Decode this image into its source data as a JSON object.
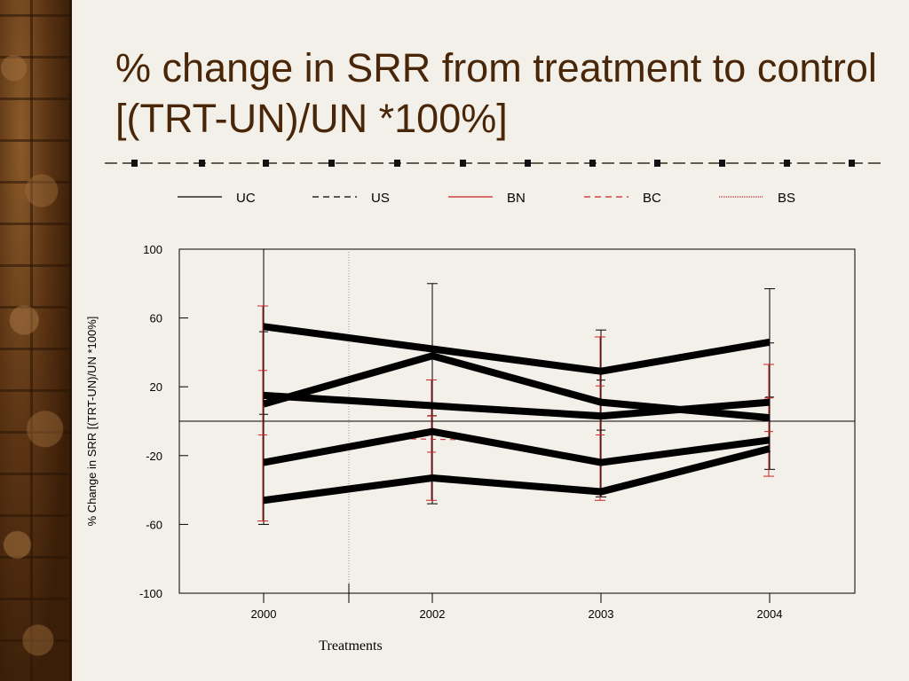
{
  "slide": {
    "title": "% change in SRR from treatment to control  [(TRT-UN)/UN *100%]"
  },
  "colors": {
    "title": "#4a2608",
    "background": "#f3f0ea",
    "series_black": "#000000",
    "series_red": "#cc2222"
  },
  "chart_data": {
    "type": "line",
    "ylabel": "% Change in SRR  [(TRT-UN)/UN *100%]",
    "xlabel": "Treatments",
    "categories": [
      "2000",
      "2002",
      "2003",
      "2004"
    ],
    "yticks": [
      "100",
      "60",
      "20",
      "-20",
      "-60",
      "-100"
    ],
    "ylim": [
      -100,
      100
    ],
    "reference_line": 0,
    "legend_position": "top",
    "legend": [
      {
        "name": "UC",
        "style": "solid",
        "color": "#000000"
      },
      {
        "name": "US",
        "style": "dashed",
        "color": "#000000"
      },
      {
        "name": "BN",
        "style": "solid",
        "color": "#cc2222"
      },
      {
        "name": "BC",
        "style": "dashed",
        "color": "#cc2222"
      },
      {
        "name": "BS",
        "style": "dotted",
        "color": "#cc2222"
      }
    ],
    "series": [
      {
        "values": [
          55,
          42,
          29,
          46
        ]
      },
      {
        "values": [
          10,
          38,
          11,
          2
        ]
      },
      {
        "values": [
          15,
          9,
          3,
          11
        ]
      },
      {
        "values": [
          -24,
          -6,
          -24,
          -11
        ]
      },
      {
        "values": [
          -46,
          -33,
          -41,
          -16
        ]
      }
    ],
    "error_bars": [
      {
        "x": "2000",
        "low": -60,
        "high": 100,
        "color": "#000000"
      },
      {
        "x": "2000",
        "low": -58,
        "high": 67,
        "color": "#cc2222"
      },
      {
        "x": "2002",
        "low": -48,
        "high": 80,
        "color": "#000000"
      },
      {
        "x": "2002",
        "low": -46,
        "high": 24,
        "color": "#cc2222"
      },
      {
        "x": "2003",
        "low": -44,
        "high": 53,
        "color": "#000000"
      },
      {
        "x": "2003",
        "low": -46,
        "high": 49,
        "color": "#cc2222"
      },
      {
        "x": "2004",
        "low": -28,
        "high": 77,
        "color": "#000000"
      },
      {
        "x": "2004",
        "low": -32,
        "high": 33,
        "color": "#cc2222"
      }
    ]
  }
}
